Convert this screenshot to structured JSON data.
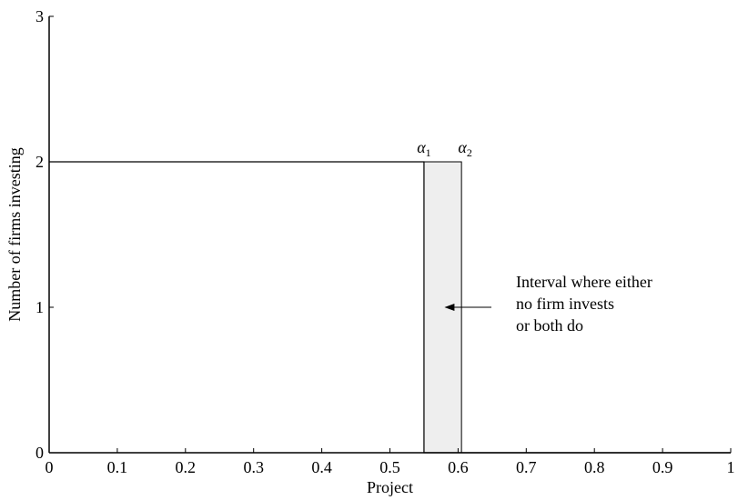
{
  "chart_data": {
    "type": "line",
    "title": "",
    "xlabel": "Project",
    "ylabel": "Number of firms investing",
    "xlim": [
      0,
      1
    ],
    "ylim": [
      0,
      3
    ],
    "x_ticks": [
      0,
      0.1,
      0.2,
      0.3,
      0.4,
      0.5,
      0.6,
      0.7,
      0.8,
      0.9,
      1
    ],
    "x_tick_labels": [
      "0",
      "0.1",
      "0.2",
      "0.3",
      "0.4",
      "0.5",
      "0.6",
      "0.7",
      "0.8",
      "0.9",
      "1"
    ],
    "y_ticks": [
      0,
      1,
      2,
      3
    ],
    "y_tick_labels": [
      "0",
      "1",
      "2",
      "3"
    ],
    "grid": false,
    "series": [
      {
        "x": [
          0,
          0.55,
          0.55,
          0.605,
          0.605,
          1
        ],
        "y": [
          2,
          2,
          0,
          0,
          0,
          0
        ]
      }
    ],
    "shaded_region": {
      "x_range": [
        0.55,
        0.605
      ],
      "y_range": [
        0,
        2
      ],
      "color": "#eeeeee"
    },
    "markers": [
      {
        "symbol": "α",
        "sub": "1",
        "x": 0.55,
        "y": 2
      },
      {
        "symbol": "α",
        "sub": "2",
        "x": 0.605,
        "y": 2
      }
    ],
    "annotation": {
      "lines": [
        "Interval where either",
        "no firm invests",
        "or both do"
      ],
      "arrow_target_x": 0.58,
      "arrow_target_y": 1
    }
  }
}
